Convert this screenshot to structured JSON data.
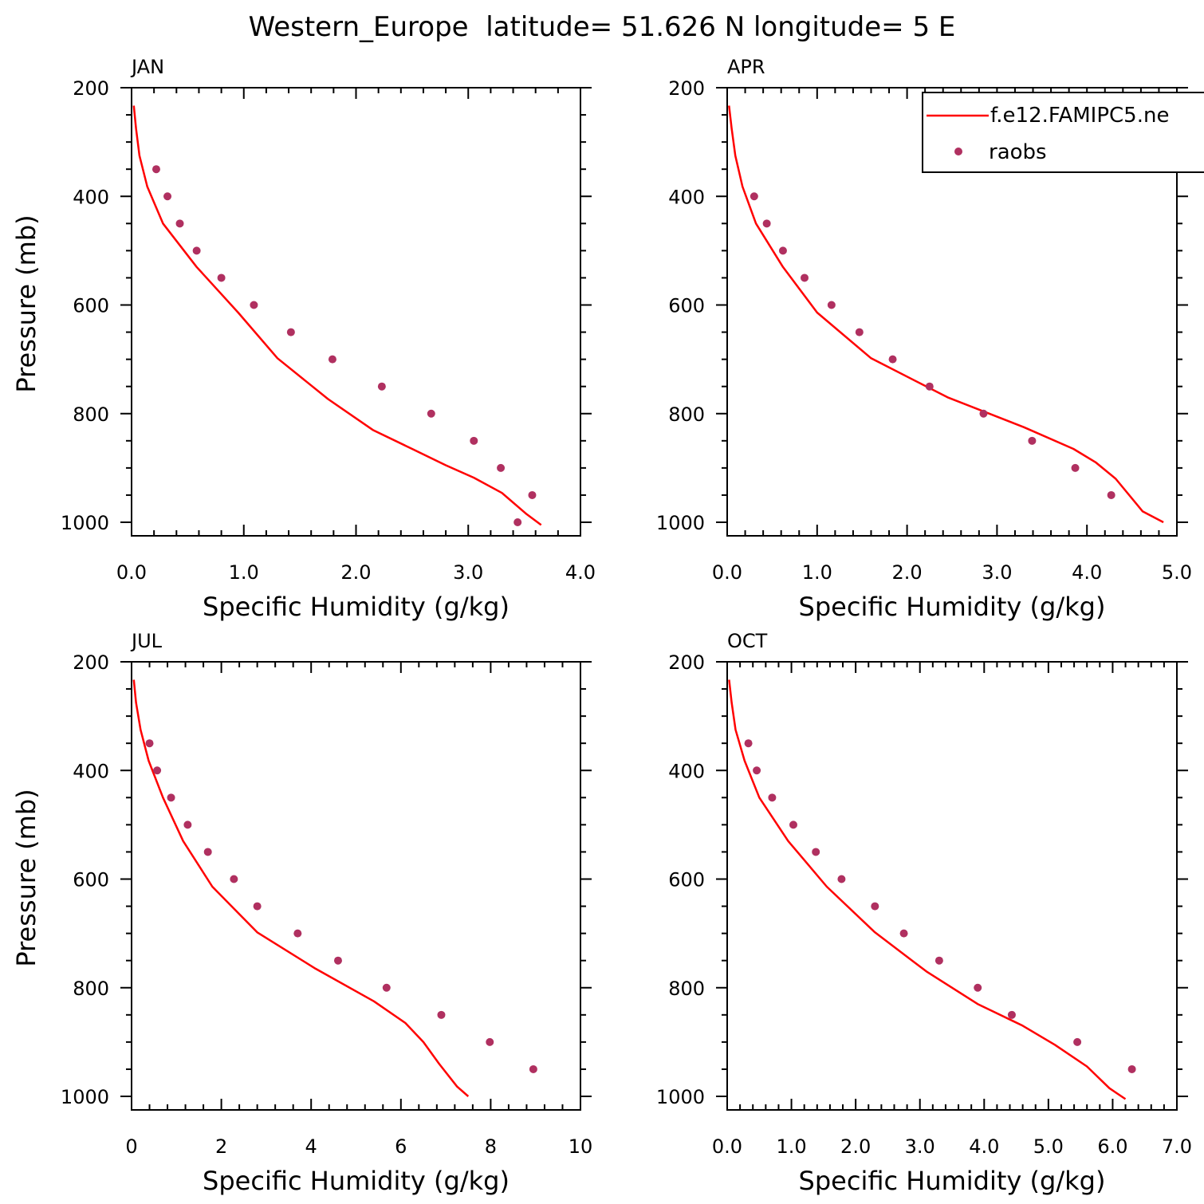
{
  "page_title": "Western_Europe  latitude= 51.626 N longitude= 5 E",
  "colors": {
    "model": "#ff0000",
    "obs": "#b03060"
  },
  "legend": {
    "position": "top-right of APR panel",
    "entries": [
      {
        "label": "f.e12.FAMIPC5.ne",
        "kind": "line",
        "color": "#ff0000"
      },
      {
        "label": "raobs",
        "kind": "marker",
        "color": "#b03060"
      }
    ]
  },
  "chart_data": [
    {
      "type": "line",
      "title": "JAN",
      "xlabel": "Specific Humidity (g/kg)",
      "ylabel": "Pressure (mb)",
      "xlim": [
        0,
        4
      ],
      "ylim": [
        1000,
        200
      ],
      "y_inverted": true,
      "xticks": [
        0,
        1,
        2,
        3,
        4
      ],
      "xtick_labels": [
        "0.0",
        "1.0",
        "2.0",
        "3.0",
        "4.0"
      ],
      "yticks": [
        200,
        400,
        600,
        800,
        1000
      ],
      "ytick_labels": [
        "200",
        "400",
        "600",
        "800",
        "1000"
      ],
      "series": [
        {
          "name": "f.e12.FAMIPC5.ne",
          "kind": "line",
          "x": [
            0.02,
            0.04,
            0.07,
            0.14,
            0.28,
            0.58,
            0.95,
            1.3,
            1.75,
            2.15,
            2.5,
            2.8,
            3.05,
            3.3,
            3.52,
            3.65
          ],
          "y": [
            233,
            275,
            325,
            382,
            450,
            530,
            614,
            698,
            773,
            830,
            865,
            895,
            918,
            946,
            985,
            1005
          ]
        },
        {
          "name": "raobs",
          "kind": "scatter",
          "x": [
            0.22,
            0.32,
            0.43,
            0.58,
            0.8,
            1.09,
            1.42,
            1.79,
            2.23,
            2.67,
            3.05,
            3.29,
            3.57,
            3.44
          ],
          "y": [
            350,
            400,
            450,
            500,
            550,
            600,
            650,
            700,
            750,
            800,
            850,
            900,
            950,
            1000
          ]
        }
      ]
    },
    {
      "type": "line",
      "title": "APR",
      "xlabel": "Specific Humidity (g/kg)",
      "ylabel": "",
      "xlim": [
        0,
        5
      ],
      "ylim": [
        1000,
        200
      ],
      "y_inverted": true,
      "xticks": [
        0,
        1,
        2,
        3,
        4,
        5
      ],
      "xtick_labels": [
        "0.0",
        "1.0",
        "2.0",
        "3.0",
        "4.0",
        "5.0"
      ],
      "yticks": [
        200,
        400,
        600,
        800,
        1000
      ],
      "ytick_labels": [
        "200",
        "400",
        "600",
        "800",
        "1000"
      ],
      "series": [
        {
          "name": "f.e12.FAMIPC5.ne",
          "kind": "line",
          "x": [
            0.02,
            0.05,
            0.09,
            0.17,
            0.32,
            0.62,
            1.0,
            1.6,
            2.45,
            3.3,
            3.85,
            4.1,
            4.32,
            4.62,
            4.85
          ],
          "y": [
            233,
            275,
            325,
            382,
            450,
            530,
            614,
            698,
            770,
            825,
            865,
            890,
            920,
            980,
            1000
          ]
        },
        {
          "name": "raobs",
          "kind": "scatter",
          "x": [
            0.3,
            0.44,
            0.62,
            0.86,
            1.16,
            1.47,
            1.84,
            2.25,
            2.85,
            3.39,
            3.87,
            4.27
          ],
          "y": [
            400,
            450,
            500,
            550,
            600,
            650,
            700,
            750,
            800,
            850,
            900,
            950
          ]
        }
      ]
    },
    {
      "type": "line",
      "title": "JUL",
      "xlabel": "Specific Humidity (g/kg)",
      "ylabel": "Pressure (mb)",
      "xlim": [
        0,
        10
      ],
      "ylim": [
        1000,
        200
      ],
      "y_inverted": true,
      "xticks": [
        0,
        2,
        4,
        6,
        8,
        10
      ],
      "xtick_labels": [
        "0",
        "2",
        "4",
        "6",
        "8",
        "10"
      ],
      "yticks": [
        200,
        400,
        600,
        800,
        1000
      ],
      "ytick_labels": [
        "200",
        "400",
        "600",
        "800",
        "1000"
      ],
      "series": [
        {
          "name": "f.e12.FAMIPC5.ne",
          "kind": "line",
          "x": [
            0.05,
            0.1,
            0.2,
            0.38,
            0.7,
            1.15,
            1.8,
            2.8,
            4.1,
            5.4,
            6.1,
            6.5,
            6.85,
            7.25,
            7.5
          ],
          "y": [
            233,
            275,
            325,
            382,
            450,
            530,
            614,
            698,
            765,
            825,
            865,
            900,
            940,
            982,
            1000
          ]
        },
        {
          "name": "raobs",
          "kind": "scatter",
          "x": [
            0.4,
            0.57,
            0.88,
            1.25,
            1.7,
            2.28,
            2.8,
            3.7,
            4.6,
            5.68,
            6.9,
            7.98,
            8.95
          ],
          "y": [
            350,
            400,
            450,
            500,
            550,
            600,
            650,
            700,
            750,
            800,
            850,
            900,
            950
          ]
        }
      ]
    },
    {
      "type": "line",
      "title": "OCT",
      "xlabel": "Specific Humidity (g/kg)",
      "ylabel": "",
      "xlim": [
        0,
        7
      ],
      "ylim": [
        1000,
        200
      ],
      "y_inverted": true,
      "xticks": [
        0,
        1,
        2,
        3,
        4,
        5,
        6,
        7
      ],
      "xtick_labels": [
        "0.0",
        "1.0",
        "2.0",
        "3.0",
        "4.0",
        "5.0",
        "6.0",
        "7.0"
      ],
      "yticks": [
        200,
        400,
        600,
        800,
        1000
      ],
      "ytick_labels": [
        "200",
        "400",
        "600",
        "800",
        "1000"
      ],
      "series": [
        {
          "name": "f.e12.FAMIPC5.ne",
          "kind": "line",
          "x": [
            0.03,
            0.07,
            0.13,
            0.27,
            0.5,
            0.95,
            1.55,
            2.3,
            3.1,
            3.9,
            4.6,
            5.1,
            5.6,
            5.95,
            6.2
          ],
          "y": [
            233,
            275,
            325,
            382,
            450,
            530,
            614,
            698,
            770,
            830,
            870,
            905,
            945,
            985,
            1005
          ]
        },
        {
          "name": "raobs",
          "kind": "scatter",
          "x": [
            0.33,
            0.46,
            0.7,
            1.03,
            1.38,
            1.78,
            2.3,
            2.75,
            3.3,
            3.9,
            4.43,
            5.45,
            6.3
          ],
          "y": [
            350,
            400,
            450,
            500,
            550,
            600,
            650,
            700,
            750,
            800,
            850,
            900,
            950
          ]
        }
      ]
    }
  ]
}
